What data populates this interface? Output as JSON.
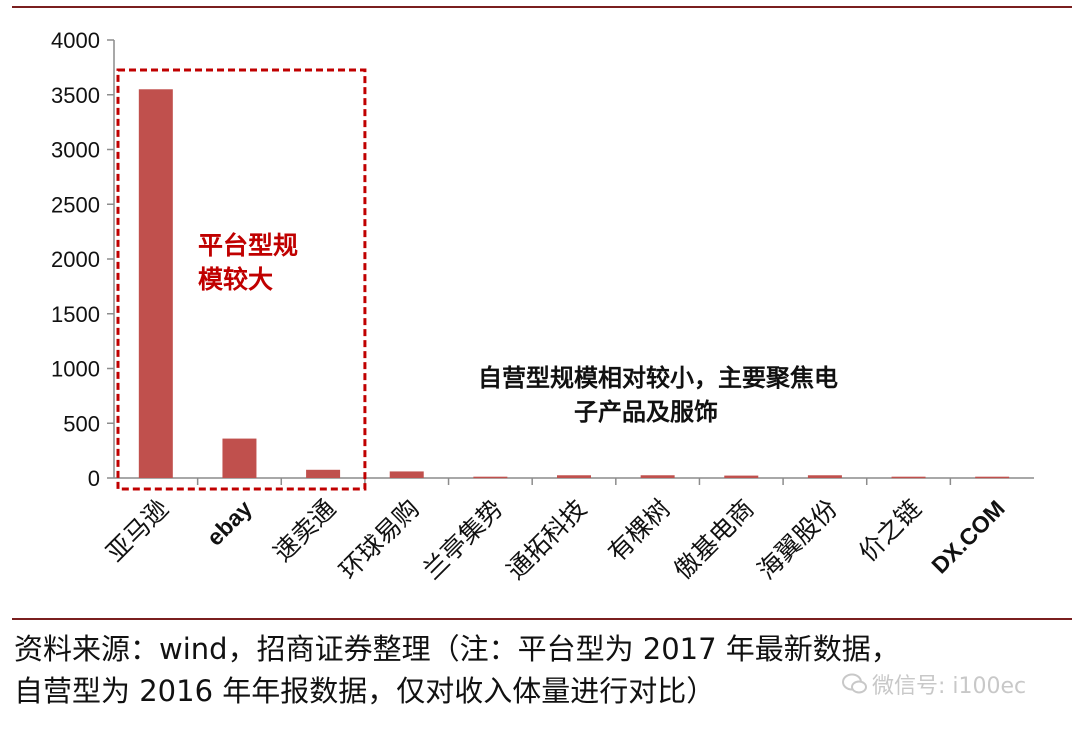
{
  "chart_data": {
    "type": "bar",
    "categories": [
      "亚马逊",
      "ebay",
      "速卖通",
      "环球易购",
      "兰亭集势",
      "通拓科技",
      "有棵树",
      "傲基电商",
      "海翼股份",
      "价之链",
      "DX.COM"
    ],
    "values": [
      3550,
      360,
      75,
      60,
      12,
      25,
      25,
      22,
      25,
      12,
      12
    ],
    "yticks": [
      0,
      500,
      1000,
      1500,
      2000,
      2500,
      3000,
      3500,
      4000
    ],
    "ylim": [
      0,
      4000
    ],
    "grid": false,
    "bar_color": "#c0504d",
    "highlight_box": {
      "categories": [
        "亚马逊",
        "ebay",
        "速卖通"
      ],
      "color": "#c00000"
    },
    "annotations": [
      {
        "lines": [
          "平台型规",
          "模较大"
        ],
        "color": "#c00000"
      },
      {
        "lines": [
          "自营型规模相对较小，主要聚焦电",
          "子产品及服饰"
        ],
        "color": "#111111"
      }
    ]
  },
  "source": {
    "line1": "资料来源：wind，招商证券整理（注：平台型为 2017 年最新数据，",
    "line2": "自营型为 2016 年年报数据，仅对收入体量进行对比）"
  },
  "watermark": {
    "text": "微信号: i100ec",
    "icon": "wechat-icon"
  },
  "colors": {
    "rule": "#7a1f1f",
    "bar": "#c0504d",
    "highlight": "#c00000"
  }
}
